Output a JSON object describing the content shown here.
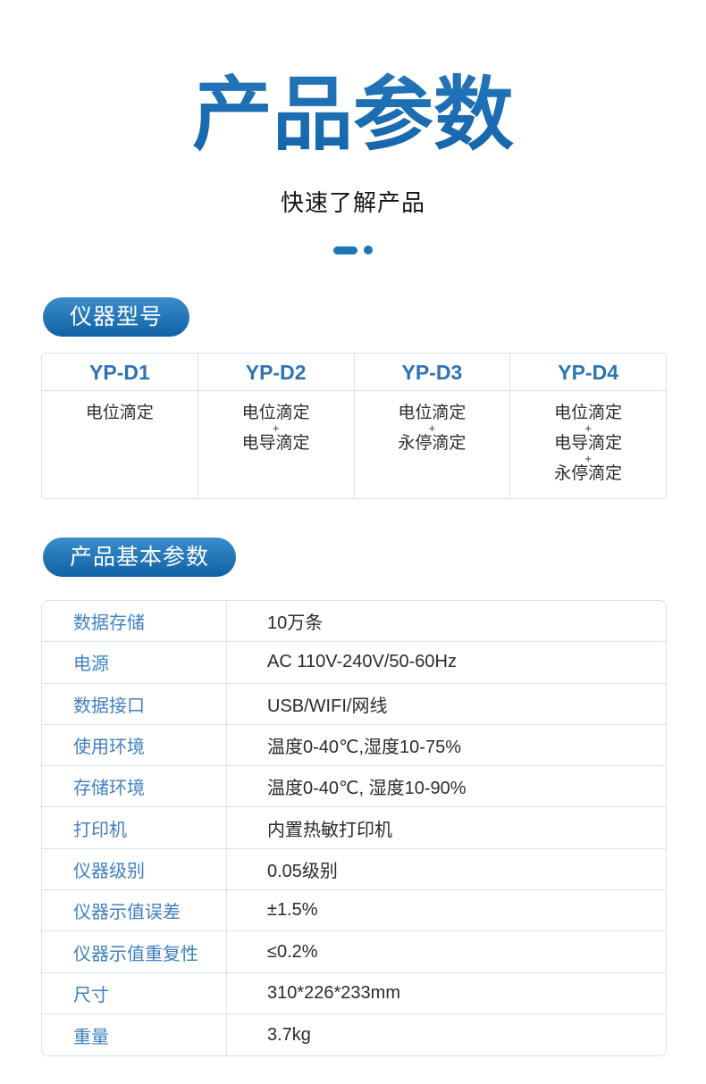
{
  "header": {
    "title": "产品参数",
    "subtitle": "快速了解产品"
  },
  "model_section": {
    "badge": "仪器型号",
    "table": {
      "headers": [
        "YP-D1",
        "YP-D2",
        "YP-D3",
        "YP-D4"
      ],
      "cells": [
        [
          "电位滴定"
        ],
        [
          "电位滴定",
          "+",
          "电导滴定"
        ],
        [
          "电位滴定",
          "+",
          "永停滴定"
        ],
        [
          "电位滴定",
          "+",
          "电导滴定",
          "+",
          "永停滴定"
        ]
      ]
    }
  },
  "specs_section": {
    "badge": "产品基本参数",
    "rows": [
      {
        "label": "数据存储",
        "value": "10万条"
      },
      {
        "label": "电源",
        "value": "AC 110V-240V/50-60Hz"
      },
      {
        "label": "数据接口",
        "value": "USB/WIFI/网线"
      },
      {
        "label": "使用环境",
        "value": "温度0-40℃,湿度10-75%"
      },
      {
        "label": "存储环境",
        "value": "温度0-40℃, 湿度10-90%"
      },
      {
        "label": "打印机",
        "value": "内置热敏打印机"
      },
      {
        "label": "仪器级别",
        "value": "0.05级别"
      },
      {
        "label": "仪器示值误差",
        "value": "±1.5%"
      },
      {
        "label": "仪器示值重复性",
        "value": "≤0.2%"
      },
      {
        "label": "尺寸",
        "value": "310*226*233mm"
      },
      {
        "label": "重量",
        "value": "3.7kg"
      }
    ]
  },
  "colors": {
    "title_blue": "#1e6fb7",
    "badge_gradient_top": "#3a8cca",
    "badge_gradient_bottom": "#1162a6",
    "table_border": "#d8e3ea",
    "column_header_blue": "#2d74b2",
    "spec_label_blue": "#4080c0",
    "body_text": "#2b2b2b",
    "divider_accent": "#1d76b5"
  }
}
